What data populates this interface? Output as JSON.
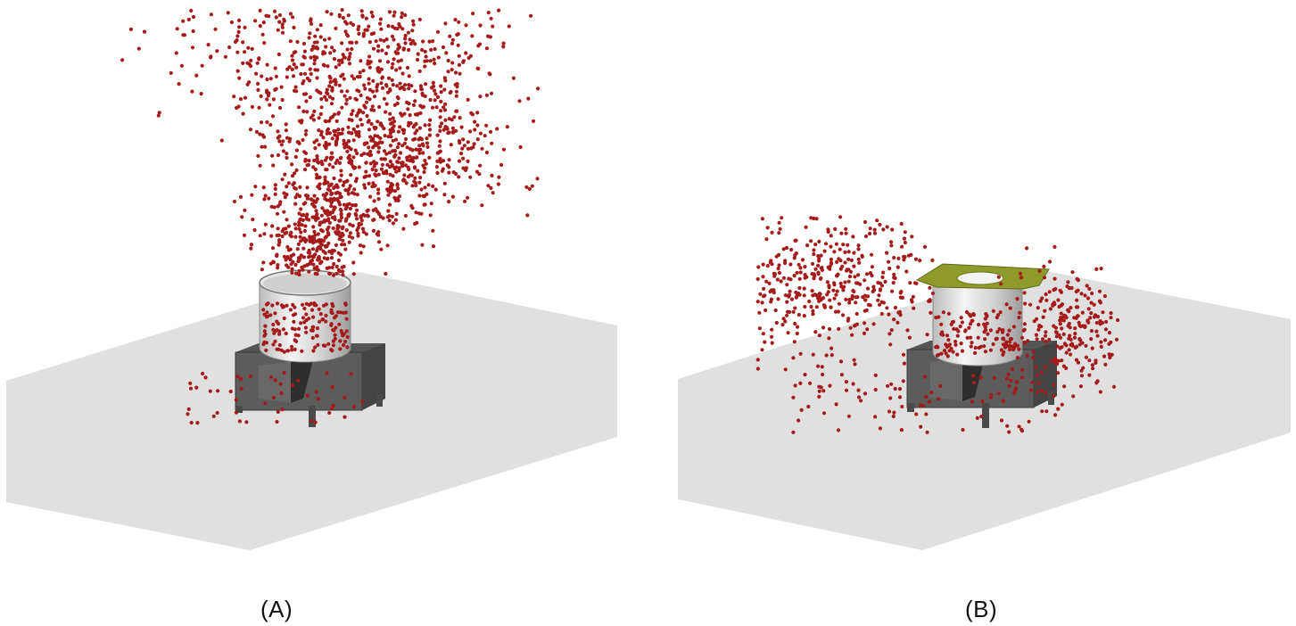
{
  "figure": {
    "panels": [
      {
        "id": "A",
        "label": "(A)",
        "has_lid": false,
        "particle_count": 1700
      },
      {
        "id": "B",
        "label": "(B)",
        "has_lid": true,
        "particle_count": 820
      }
    ],
    "colors": {
      "floor": "#e0e0e0",
      "drum": "#d9d9d9",
      "frame": "#5a5a5a",
      "particle": "#a51a1a",
      "lid": "#8e9a2a"
    }
  }
}
